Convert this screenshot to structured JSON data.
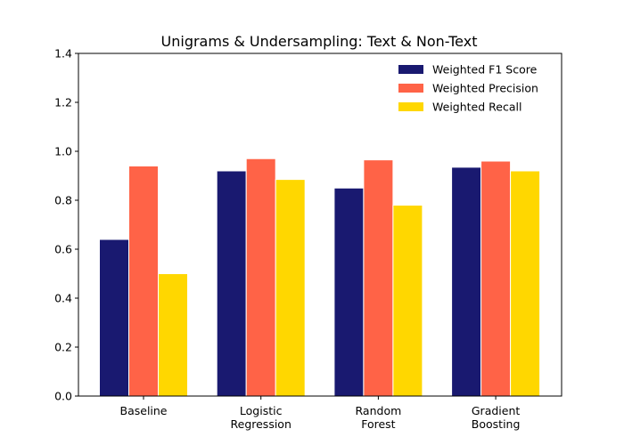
{
  "chart_data": {
    "type": "bar",
    "title": "Unigrams & Undersampling: Text & Non-Text",
    "xlabel": "",
    "ylabel": "",
    "categories": [
      [
        "Baseline"
      ],
      [
        "Logistic",
        "Regression"
      ],
      [
        "Random",
        "Forest"
      ],
      [
        "Gradient",
        "Boosting"
      ]
    ],
    "series": [
      {
        "name": "Weighted F1 Score",
        "color": "#191970",
        "values": [
          0.64,
          0.92,
          0.85,
          0.935
        ]
      },
      {
        "name": "Weighted Precision",
        "color": "#FF6347",
        "values": [
          0.94,
          0.97,
          0.965,
          0.96
        ]
      },
      {
        "name": "Weighted Recall",
        "color": "#FFD700",
        "values": [
          0.5,
          0.885,
          0.78,
          0.92
        ]
      }
    ],
    "ylim": [
      0,
      1.4
    ],
    "yticks": [
      "0.0",
      "0.2",
      "0.4",
      "0.6",
      "0.8",
      "1.0",
      "1.2",
      "1.4"
    ],
    "grid": false,
    "legend": "top-right"
  }
}
